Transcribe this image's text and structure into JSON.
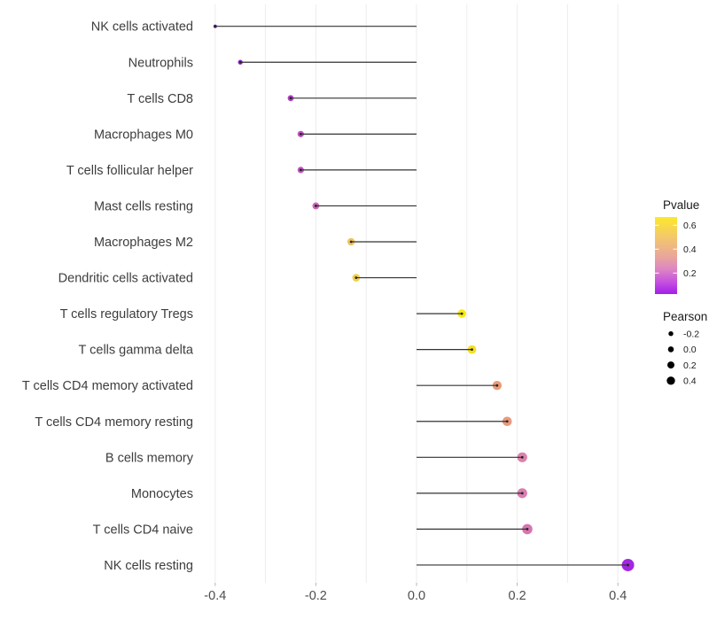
{
  "chart_data": {
    "type": "lollipop",
    "title": "",
    "xlabel": "",
    "ylabel": "",
    "background": "#ffffff",
    "stem_color": "#333333",
    "stem_tip_color": "#262626",
    "axis_text_color": "#4d4d4d",
    "category_text_color": "#3d3d3d",
    "x_axis": {
      "range": [
        -0.45,
        0.47
      ],
      "ticks": [
        {
          "value": -0.4,
          "label": "-0.4"
        },
        {
          "value": -0.2,
          "label": "-0.2"
        },
        {
          "value": 0.0,
          "label": "0.0"
        },
        {
          "value": 0.2,
          "label": "0.2"
        },
        {
          "value": 0.4,
          "label": "0.4"
        }
      ]
    },
    "grid": {
      "values": [
        -0.4,
        -0.3,
        -0.2,
        -0.1,
        0.0,
        0.1,
        0.2,
        0.3,
        0.4
      ],
      "color": "#ececec"
    },
    "rows": [
      {
        "label": "NK cells activated",
        "pearson": -0.4,
        "color": "#8b1ed3",
        "size": 2.0
      },
      {
        "label": "Neutrophils",
        "pearson": -0.35,
        "color": "#9726d6",
        "size": 2.7
      },
      {
        "label": "T cells CD8",
        "pearson": -0.25,
        "color": "#b441c9",
        "size": 3.4
      },
      {
        "label": "Macrophages M0",
        "pearson": -0.23,
        "color": "#c152c2",
        "size": 3.6
      },
      {
        "label": "T cells follicular helper",
        "pearson": -0.23,
        "color": "#c254c1",
        "size": 3.6
      },
      {
        "label": "Mast cells resting",
        "pearson": -0.2,
        "color": "#cb66bb",
        "size": 3.9
      },
      {
        "label": "Macrophages M2",
        "pearson": -0.13,
        "color": "#eec45c",
        "size": 4.2
      },
      {
        "label": "Dendritic cells activated",
        "pearson": -0.12,
        "color": "#f1cf47",
        "size": 4.3
      },
      {
        "label": "T cells regulatory  Tregs",
        "pearson": 0.09,
        "color": "#f8ec0c",
        "size": 4.8
      },
      {
        "label": "T cells gamma delta",
        "pearson": 0.11,
        "color": "#f4e11e",
        "size": 4.9
      },
      {
        "label": "T cells CD4 memory activated",
        "pearson": 0.16,
        "color": "#e99b77",
        "size": 5.2
      },
      {
        "label": "T cells CD4 memory resting",
        "pearson": 0.18,
        "color": "#e8997e",
        "size": 5.3
      },
      {
        "label": "B cells memory",
        "pearson": 0.21,
        "color": "#dc81ac",
        "size": 5.6
      },
      {
        "label": "Monocytes",
        "pearson": 0.21,
        "color": "#da7dae",
        "size": 5.6
      },
      {
        "label": "T cells CD4 naive",
        "pearson": 0.22,
        "color": "#d674b1",
        "size": 5.8
      },
      {
        "label": "NK cells resting",
        "pearson": 0.42,
        "color": "#a326e2",
        "size": 7.0
      }
    ],
    "legend": {
      "pvalue": {
        "title": "Pvalue",
        "ticks": [
          {
            "value": 0.6,
            "label": "0.6"
          },
          {
            "value": 0.4,
            "label": "0.4"
          },
          {
            "value": 0.2,
            "label": "0.2"
          }
        ],
        "gradient": [
          {
            "offset": "0%",
            "color": "#fce92b"
          },
          {
            "offset": "28%",
            "color": "#f3c56f"
          },
          {
            "offset": "52%",
            "color": "#e8a59c"
          },
          {
            "offset": "68%",
            "color": "#dd85c4"
          },
          {
            "offset": "85%",
            "color": "#c44fe0"
          },
          {
            "offset": "100%",
            "color": "#a31ee8"
          }
        ]
      },
      "pearson": {
        "title": "Pearson",
        "dot_color": "#000000",
        "items": [
          {
            "label": "-0.2",
            "r": 2.7
          },
          {
            "label": "0.0",
            "r": 3.3
          },
          {
            "label": "0.2",
            "r": 4.0
          },
          {
            "label": "0.4",
            "r": 4.7
          }
        ]
      }
    }
  }
}
